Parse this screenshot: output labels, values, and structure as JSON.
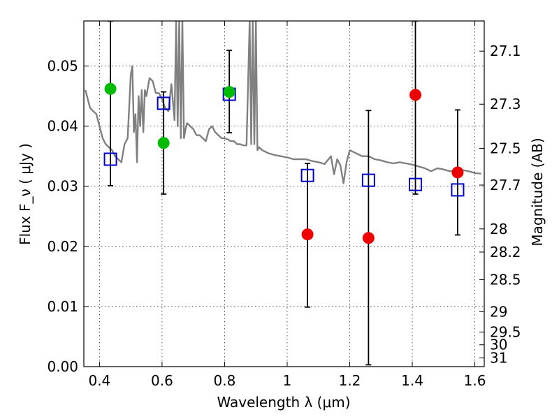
{
  "chart_data": {
    "type": "scatter",
    "xlabel": "Wavelength  λ (μm)",
    "ylabel": "Flux  F_ν  ( μJy )",
    "ylabel_right": "Magnitude (AB)",
    "xlim": [
      0.35,
      1.63
    ],
    "ylim": [
      0.0,
      0.0575
    ],
    "grid": true,
    "x_ticks": [
      0.4,
      0.6,
      0.8,
      1.0,
      1.2,
      1.4,
      1.6
    ],
    "x_tick_labels": [
      "0.4",
      "0.6",
      "0.8",
      "1",
      "1.2",
      "1.4",
      "1.6"
    ],
    "y_ticks": [
      0.0,
      0.01,
      0.02,
      0.03,
      0.04,
      0.05
    ],
    "y_tick_labels": [
      "0.00",
      "0.01",
      "0.02",
      "0.03",
      "0.04",
      "0.05"
    ],
    "right_ticks": [
      {
        "mag": 27.1,
        "label": "27.1"
      },
      {
        "mag": 27.3,
        "label": "27.3"
      },
      {
        "mag": 27.5,
        "label": "27.5"
      },
      {
        "mag": 27.7,
        "label": "27.7"
      },
      {
        "mag": 28.0,
        "label": "28"
      },
      {
        "mag": 28.2,
        "label": "28.2"
      },
      {
        "mag": 28.5,
        "label": "28.5"
      },
      {
        "mag": 29.0,
        "label": "29"
      },
      {
        "mag": 29.5,
        "label": "29.5"
      },
      {
        "mag": 30.0,
        "label": "30"
      },
      {
        "mag": 31.0,
        "label": "31"
      }
    ],
    "colors": {
      "model": "#808080",
      "model_points": "#0000cc",
      "green": "#00bb00",
      "red": "#ee0000",
      "errorbar": "#000000"
    },
    "model_spectrum": {
      "x": [
        0.355,
        0.37,
        0.38,
        0.39,
        0.4,
        0.41,
        0.42,
        0.43,
        0.44,
        0.45,
        0.46,
        0.47,
        0.48,
        0.49,
        0.5,
        0.505,
        0.51,
        0.515,
        0.52,
        0.525,
        0.53,
        0.535,
        0.54,
        0.545,
        0.55,
        0.56,
        0.57,
        0.58,
        0.59,
        0.6,
        0.61,
        0.62,
        0.63,
        0.64,
        0.645,
        0.65,
        0.655,
        0.66,
        0.665,
        0.67,
        0.675,
        0.68,
        0.69,
        0.7,
        0.71,
        0.72,
        0.73,
        0.74,
        0.75,
        0.76,
        0.77,
        0.78,
        0.79,
        0.8,
        0.81,
        0.82,
        0.83,
        0.84,
        0.85,
        0.86,
        0.87,
        0.88,
        0.885,
        0.89,
        0.895,
        0.9,
        0.905,
        0.91,
        0.92,
        0.94,
        0.96,
        0.98,
        1.0,
        1.02,
        1.04,
        1.06,
        1.08,
        1.1,
        1.12,
        1.14,
        1.15,
        1.16,
        1.17,
        1.18,
        1.19,
        1.2,
        1.22,
        1.24,
        1.26,
        1.28,
        1.3,
        1.32,
        1.34,
        1.36,
        1.38,
        1.4,
        1.42,
        1.44,
        1.46,
        1.48,
        1.5,
        1.52,
        1.54,
        1.56,
        1.58,
        1.6,
        1.62
      ],
      "y": [
        0.046,
        0.043,
        0.0425,
        0.042,
        0.04,
        0.038,
        0.037,
        0.0365,
        0.036,
        0.035,
        0.0345,
        0.034,
        0.037,
        0.038,
        0.0485,
        0.05,
        0.039,
        0.042,
        0.034,
        0.045,
        0.04,
        0.046,
        0.039,
        0.046,
        0.045,
        0.048,
        0.0475,
        0.0455,
        0.0455,
        0.0445,
        0.043,
        0.0425,
        0.047,
        0.041,
        0.0575,
        0.04,
        0.0575,
        0.038,
        0.0575,
        0.038,
        0.0395,
        0.0405,
        0.04,
        0.0395,
        0.0385,
        0.0385,
        0.038,
        0.0375,
        0.0395,
        0.04,
        0.039,
        0.0385,
        0.038,
        0.038,
        0.0378,
        0.0375,
        0.0375,
        0.037,
        0.037,
        0.0368,
        0.0368,
        0.0575,
        0.037,
        0.0575,
        0.037,
        0.0575,
        0.036,
        0.0365,
        0.036,
        0.0355,
        0.0352,
        0.035,
        0.0348,
        0.0345,
        0.0345,
        0.0345,
        0.0342,
        0.034,
        0.0337,
        0.035,
        0.032,
        0.0345,
        0.0335,
        0.0305,
        0.034,
        0.036,
        0.0355,
        0.035,
        0.035,
        0.0345,
        0.0343,
        0.034,
        0.0338,
        0.034,
        0.0338,
        0.0336,
        0.0333,
        0.033,
        0.0325,
        0.033,
        0.0328,
        0.0325,
        0.0326,
        0.0327,
        0.0325,
        0.0322,
        0.0321
      ]
    },
    "model_points": {
      "x": [
        0.435,
        0.605,
        0.815,
        1.065,
        1.26,
        1.41,
        1.545
      ],
      "y": [
        0.0345,
        0.0438,
        0.0453,
        0.0318,
        0.031,
        0.0303,
        0.0294
      ]
    },
    "observed": {
      "x": [
        0.435,
        0.605,
        0.815,
        1.065,
        1.26,
        1.41,
        1.545
      ],
      "y": [
        0.0462,
        0.0372,
        0.0457,
        0.022,
        0.0214,
        0.0452,
        0.0323
      ],
      "colors": [
        "green",
        "green",
        "green",
        "red",
        "red",
        "red",
        "red"
      ],
      "err_low": [
        0.0301,
        0.0287,
        0.0389,
        0.0099,
        0.0003,
        0.0287,
        0.0219
      ],
      "err_high": [
        0.0575,
        0.0457,
        0.0526,
        0.0338,
        0.0426,
        0.0575,
        0.0427
      ]
    }
  }
}
